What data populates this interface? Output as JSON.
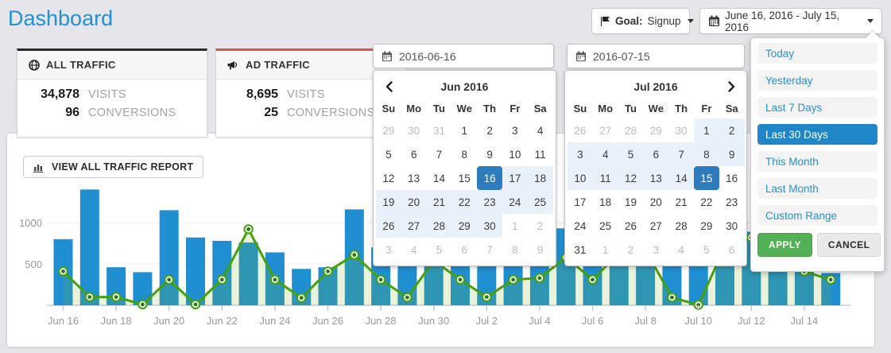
{
  "page": {
    "title": "Dashboard"
  },
  "header": {
    "goal_button": {
      "label": "Goal:",
      "value": "Signup"
    },
    "date_range_button": {
      "label": "June 16, 2016 - July 15, 2016"
    }
  },
  "cards": [
    {
      "title": "ALL TRAFFIC",
      "accent": "#2b2b2b",
      "visits": "34,878",
      "visits_label": "VISITS",
      "conversions": "96",
      "conversions_label": "CONVERSIONS"
    },
    {
      "title": "AD TRAFFIC",
      "accent": "#d9534f",
      "visits": "8,695",
      "visits_label": "VISITS",
      "conversions": "25",
      "conversions_label": "CONVERSIONS"
    }
  ],
  "chart_section": {
    "view_report_button": "VIEW ALL TRAFFIC REPORT"
  },
  "datepicker": {
    "start_input": "2016-06-16",
    "end_input": "2016-07-15",
    "weekdays": [
      "Su",
      "Mo",
      "Tu",
      "We",
      "Th",
      "Fr",
      "Sa"
    ],
    "months": [
      {
        "title": "Jun 2016",
        "cells": [
          {
            "d": "29",
            "s": "m"
          },
          {
            "d": "30",
            "s": "m"
          },
          {
            "d": "31",
            "s": "m"
          },
          {
            "d": "1",
            "s": "n"
          },
          {
            "d": "2",
            "s": "n"
          },
          {
            "d": "3",
            "s": "n"
          },
          {
            "d": "4",
            "s": "n"
          },
          {
            "d": "5",
            "s": "n"
          },
          {
            "d": "6",
            "s": "n"
          },
          {
            "d": "7",
            "s": "n"
          },
          {
            "d": "8",
            "s": "n"
          },
          {
            "d": "9",
            "s": "n"
          },
          {
            "d": "10",
            "s": "n"
          },
          {
            "d": "11",
            "s": "n"
          },
          {
            "d": "12",
            "s": "n"
          },
          {
            "d": "13",
            "s": "n"
          },
          {
            "d": "14",
            "s": "n"
          },
          {
            "d": "15",
            "s": "n"
          },
          {
            "d": "16",
            "s": "sel"
          },
          {
            "d": "17",
            "s": "r"
          },
          {
            "d": "18",
            "s": "r"
          },
          {
            "d": "19",
            "s": "r"
          },
          {
            "d": "20",
            "s": "r"
          },
          {
            "d": "21",
            "s": "r"
          },
          {
            "d": "22",
            "s": "r"
          },
          {
            "d": "23",
            "s": "r"
          },
          {
            "d": "24",
            "s": "r"
          },
          {
            "d": "25",
            "s": "r"
          },
          {
            "d": "26",
            "s": "r"
          },
          {
            "d": "27",
            "s": "r"
          },
          {
            "d": "28",
            "s": "r"
          },
          {
            "d": "29",
            "s": "r"
          },
          {
            "d": "30",
            "s": "r"
          },
          {
            "d": "1",
            "s": "m"
          },
          {
            "d": "2",
            "s": "m"
          },
          {
            "d": "3",
            "s": "m"
          },
          {
            "d": "4",
            "s": "m"
          },
          {
            "d": "5",
            "s": "m"
          },
          {
            "d": "6",
            "s": "m"
          },
          {
            "d": "7",
            "s": "m"
          },
          {
            "d": "8",
            "s": "m"
          },
          {
            "d": "9",
            "s": "m"
          }
        ]
      },
      {
        "title": "Jul 2016",
        "cells": [
          {
            "d": "26",
            "s": "m"
          },
          {
            "d": "27",
            "s": "m"
          },
          {
            "d": "28",
            "s": "m"
          },
          {
            "d": "29",
            "s": "m"
          },
          {
            "d": "30",
            "s": "m"
          },
          {
            "d": "1",
            "s": "r"
          },
          {
            "d": "2",
            "s": "r"
          },
          {
            "d": "3",
            "s": "r"
          },
          {
            "d": "4",
            "s": "r"
          },
          {
            "d": "5",
            "s": "r"
          },
          {
            "d": "6",
            "s": "r"
          },
          {
            "d": "7",
            "s": "r"
          },
          {
            "d": "8",
            "s": "r"
          },
          {
            "d": "9",
            "s": "r"
          },
          {
            "d": "10",
            "s": "r"
          },
          {
            "d": "11",
            "s": "r"
          },
          {
            "d": "12",
            "s": "r"
          },
          {
            "d": "13",
            "s": "r"
          },
          {
            "d": "14",
            "s": "r"
          },
          {
            "d": "15",
            "s": "sel"
          },
          {
            "d": "16",
            "s": "n"
          },
          {
            "d": "17",
            "s": "n"
          },
          {
            "d": "18",
            "s": "n"
          },
          {
            "d": "19",
            "s": "n"
          },
          {
            "d": "20",
            "s": "n"
          },
          {
            "d": "21",
            "s": "n"
          },
          {
            "d": "22",
            "s": "n"
          },
          {
            "d": "23",
            "s": "n"
          },
          {
            "d": "24",
            "s": "n"
          },
          {
            "d": "25",
            "s": "n"
          },
          {
            "d": "26",
            "s": "n"
          },
          {
            "d": "27",
            "s": "n"
          },
          {
            "d": "28",
            "s": "n"
          },
          {
            "d": "29",
            "s": "n"
          },
          {
            "d": "30",
            "s": "n"
          },
          {
            "d": "31",
            "s": "n"
          },
          {
            "d": "1",
            "s": "m"
          },
          {
            "d": "2",
            "s": "m"
          },
          {
            "d": "3",
            "s": "m"
          },
          {
            "d": "4",
            "s": "m"
          },
          {
            "d": "5",
            "s": "m"
          },
          {
            "d": "6",
            "s": "m"
          }
        ]
      }
    ],
    "presets": [
      "Today",
      "Yesterday",
      "Last 7 Days",
      "Last 30 Days",
      "This Month",
      "Last Month",
      "Custom Range"
    ],
    "selected_preset": "Last 30 Days",
    "apply_label": "APPLY",
    "cancel_label": "CANCEL"
  },
  "chart_data": {
    "type": "bar",
    "x": [
      "Jun 16",
      "Jun 17",
      "Jun 18",
      "Jun 19",
      "Jun 20",
      "Jun 21",
      "Jun 22",
      "Jun 23",
      "Jun 24",
      "Jun 25",
      "Jun 26",
      "Jun 27",
      "Jun 28",
      "Jun 29",
      "Jun 30",
      "Jul 1",
      "Jul 2",
      "Jul 3",
      "Jul 4",
      "Jul 5",
      "Jul 6",
      "Jul 7",
      "Jul 8",
      "Jul 9",
      "Jul 10",
      "Jul 11",
      "Jul 12",
      "Jul 13",
      "Jul 14",
      "Jul 15"
    ],
    "xtick_label_step": 2,
    "series": [
      {
        "name": "Visits",
        "type": "bar",
        "color": "#1f8fd1",
        "values": [
          800,
          1400,
          460,
          400,
          1150,
          820,
          780,
          760,
          640,
          440,
          460,
          1160,
          700,
          620,
          830,
          660,
          580,
          650,
          560,
          930,
          600,
          790,
          710,
          560,
          660,
          750,
          890,
          620,
          760,
          390
        ]
      },
      {
        "name": "Conversions",
        "type": "line",
        "color": "#44a00e",
        "values": [
          410,
          100,
          100,
          10,
          310,
          10,
          310,
          920,
          310,
          90,
          410,
          610,
          310,
          95,
          540,
          310,
          100,
          310,
          330,
          580,
          310,
          630,
          670,
          95,
          5,
          710,
          820,
          630,
          410,
          310
        ]
      }
    ],
    "yticks": [
      500,
      1000
    ],
    "ylim": [
      0,
      1450
    ],
    "grid": "horizontal",
    "legend": "none"
  }
}
